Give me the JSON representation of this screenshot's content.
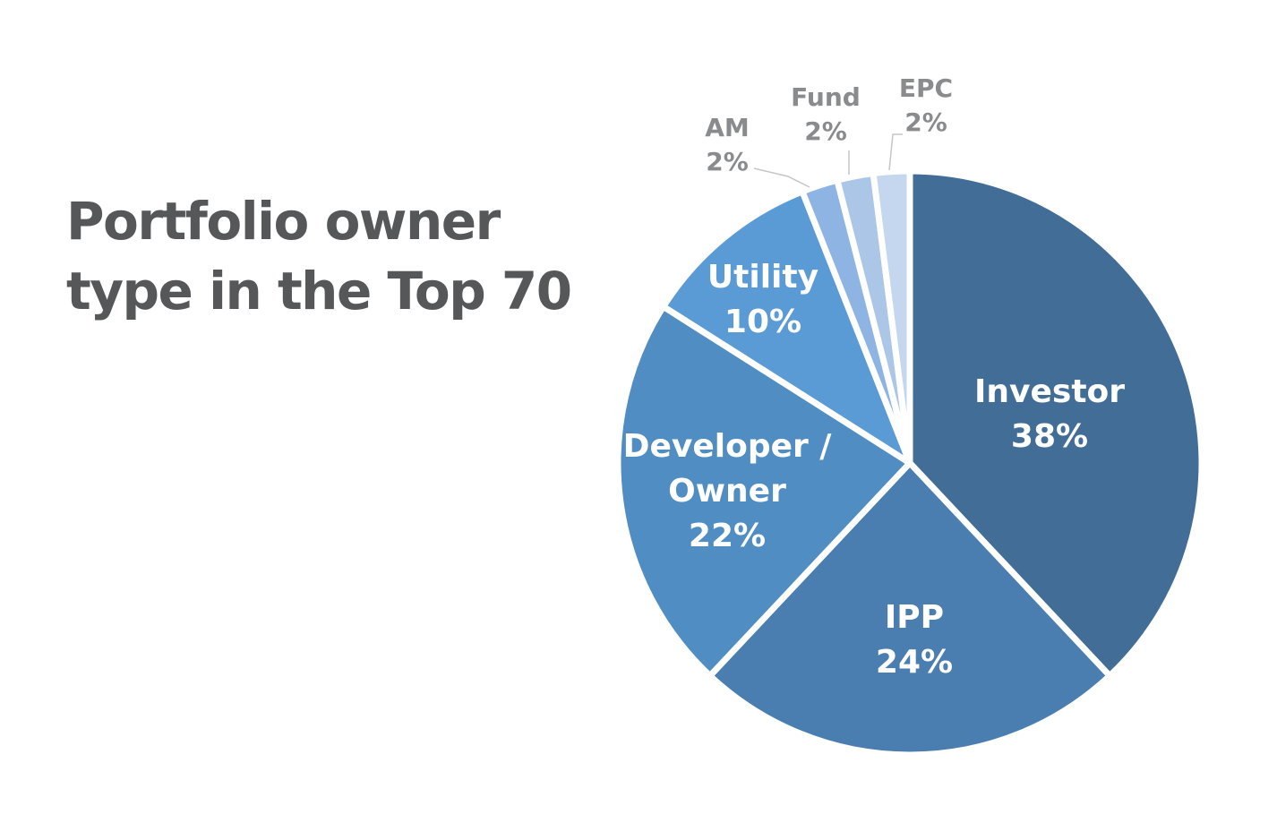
{
  "title": {
    "line1": "Portfolio owner",
    "line2": "type in the Top 70"
  },
  "chart_data": {
    "type": "pie",
    "title": "Portfolio owner type in the Top 70",
    "unit": "%",
    "start_angle_deg": 0,
    "direction": "clockwise",
    "slices": [
      {
        "name_lines": [
          "Investor"
        ],
        "value": 38,
        "value_label": "38%",
        "color": "#416d97",
        "label": "inside"
      },
      {
        "name_lines": [
          "IPP"
        ],
        "value": 24,
        "value_label": "24%",
        "color": "#4a7eb0",
        "label": "inside"
      },
      {
        "name_lines": [
          "Developer /",
          "Owner"
        ],
        "value": 22,
        "value_label": "22%",
        "color": "#508dc2",
        "label": "inside"
      },
      {
        "name_lines": [
          "Utility"
        ],
        "value": 10,
        "value_label": "10%",
        "color": "#5b9bd5",
        "label": "inside"
      },
      {
        "name_lines": [
          "AM"
        ],
        "value": 2,
        "value_label": "2%",
        "color": "#8eb4e3",
        "label": "outside"
      },
      {
        "name_lines": [
          "Fund"
        ],
        "value": 2,
        "value_label": "2%",
        "color": "#acc6e8",
        "label": "outside"
      },
      {
        "name_lines": [
          "EPC"
        ],
        "value": 2,
        "value_label": "2%",
        "color": "#c5d7ef",
        "label": "outside"
      }
    ]
  }
}
